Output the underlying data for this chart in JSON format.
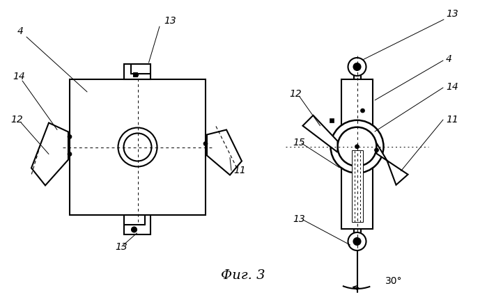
{
  "title": "Фиг. 3",
  "bg_color": "#ffffff",
  "line_color": "#000000",
  "fig_width": 6.99,
  "fig_height": 4.24,
  "dpi": 100
}
